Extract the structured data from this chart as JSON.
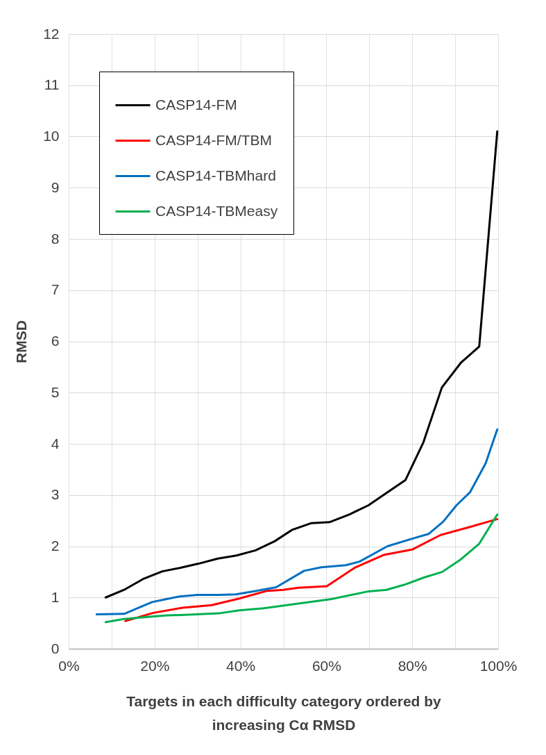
{
  "chart_data": {
    "type": "line",
    "xlabel": "Targets in each difficulty category ordered by increasing Cα RMSD",
    "ylabel": "RMSD",
    "xlim": [
      0,
      100
    ],
    "ylim": [
      0,
      12
    ],
    "xticks": [
      {
        "value": 0,
        "label": "0%"
      },
      {
        "value": 10,
        "label": null
      },
      {
        "value": 20,
        "label": "20%"
      },
      {
        "value": 30,
        "label": null
      },
      {
        "value": 40,
        "label": "40%"
      },
      {
        "value": 50,
        "label": null
      },
      {
        "value": 60,
        "label": "60%"
      },
      {
        "value": 70,
        "label": null
      },
      {
        "value": 80,
        "label": "80%"
      },
      {
        "value": 90,
        "label": null
      },
      {
        "value": 100,
        "label": "100%"
      }
    ],
    "yticks": [
      0,
      1,
      2,
      3,
      4,
      5,
      6,
      7,
      8,
      9,
      10,
      11,
      12
    ],
    "grid": true,
    "legend": "top left",
    "marker": "none",
    "line_style": "solid",
    "series": [
      {
        "name": "CASP14-FM",
        "color": "#000000",
        "x": [
          8.6,
          12.9,
          17.3,
          21.8,
          26,
          30.2,
          34.7,
          39.1,
          43.5,
          48,
          52,
          56.4,
          60.7,
          65.3,
          69.8,
          74,
          78.4,
          82.6,
          86.9,
          91.3,
          95.6,
          99.8
        ],
        "values": [
          1.0,
          1.15,
          1.36,
          1.51,
          1.58,
          1.66,
          1.76,
          1.82,
          1.92,
          2.1,
          2.32,
          2.45,
          2.47,
          2.62,
          2.8,
          3.04,
          3.29,
          4.03,
          5.1,
          5.58,
          5.9,
          10.1
        ]
      },
      {
        "name": "CASP14-FM/TBM",
        "color": "#ff0000",
        "x": [
          13.2,
          19.7,
          26.5,
          33.3,
          39.7,
          46.2,
          49.9,
          53.4,
          60.1,
          66.6,
          73.3,
          80.1,
          86.6,
          93.1,
          99.8
        ],
        "values": [
          0.54,
          0.7,
          0.8,
          0.85,
          0.98,
          1.13,
          1.15,
          1.19,
          1.22,
          1.58,
          1.83,
          1.94,
          2.22,
          2.37,
          2.53
        ]
      },
      {
        "name": "CASP14-TBMhard",
        "color": "#0070c0",
        "x": [
          6.5,
          12.9,
          19.4,
          21.6,
          25.8,
          30,
          34.9,
          38.9,
          43,
          48.3,
          54.8,
          58.8,
          64.5,
          67.7,
          74.2,
          80.1,
          83.8,
          87.2,
          90.3,
          93.5,
          97.1,
          99.8
        ],
        "values": [
          0.67,
          0.68,
          0.91,
          0.95,
          1.02,
          1.05,
          1.05,
          1.06,
          1.12,
          1.2,
          1.52,
          1.59,
          1.63,
          1.7,
          2.0,
          2.15,
          2.24,
          2.48,
          2.8,
          3.06,
          3.62,
          4.28
        ]
      },
      {
        "name": "CASP14-TBMeasy",
        "color": "#00b050",
        "x": [
          8.6,
          12.8,
          19.7,
          22.9,
          27,
          34.9,
          39.7,
          45.4,
          49.9,
          61.2,
          69.8,
          74,
          78.2,
          82.7,
          87,
          91.4,
          95.6,
          99.8
        ],
        "values": [
          0.52,
          0.58,
          0.63,
          0.65,
          0.66,
          0.69,
          0.75,
          0.79,
          0.84,
          0.97,
          1.12,
          1.15,
          1.25,
          1.39,
          1.5,
          1.75,
          2.05,
          2.62
        ]
      }
    ]
  }
}
